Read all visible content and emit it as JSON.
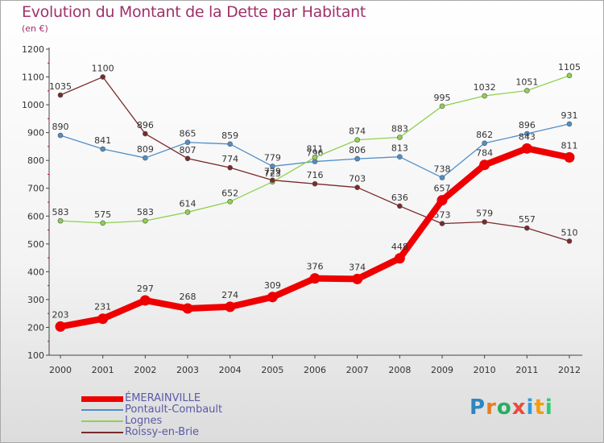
{
  "title": "Evolution du Montant de la Dette par Habitant",
  "subtitle": "(en €)",
  "logo": {
    "letters": [
      "P",
      "r",
      "o",
      "x",
      "i",
      "t",
      "i"
    ],
    "colors": [
      "#2e86c1",
      "#e67e22",
      "#27ae60",
      "#e74c3c",
      "#3498db",
      "#f39c12",
      "#2ecc71"
    ]
  },
  "chart_data": {
    "type": "line",
    "title": "Evolution du Montant de la Dette par Habitant",
    "ylabel": "(en €)",
    "x": [
      "2000",
      "2001",
      "2002",
      "2003",
      "2004",
      "2005",
      "2006",
      "2007",
      "2008",
      "2009",
      "2010",
      "2011",
      "2012"
    ],
    "ylim": [
      100,
      1200
    ],
    "yticks": [
      100,
      200,
      300,
      400,
      500,
      600,
      700,
      800,
      900,
      1000,
      1100,
      1200
    ],
    "grid": false,
    "legend_position": "bottom-left",
    "series": [
      {
        "name": "ÉMERAINVILLE",
        "color": "#ee0000",
        "values": [
          203,
          231,
          297,
          268,
          274,
          309,
          376,
          374,
          448,
          657,
          784,
          843,
          811
        ]
      },
      {
        "name": "Pontault-Combault",
        "color": "#4f8fc7",
        "values": [
          890,
          841,
          809,
          865,
          859,
          779,
          796,
          806,
          813,
          738,
          862,
          896,
          931
        ]
      },
      {
        "name": "Lognes",
        "color": "#8fd14f",
        "values": [
          583,
          575,
          583,
          614,
          652,
          723,
          811,
          874,
          883,
          995,
          1032,
          1051,
          1105
        ]
      },
      {
        "name": "Roissy-en-Brie",
        "color": "#7a2a2a",
        "values": [
          1035,
          1100,
          896,
          807,
          774,
          729,
          716,
          703,
          636,
          573,
          579,
          557,
          510
        ]
      }
    ]
  }
}
